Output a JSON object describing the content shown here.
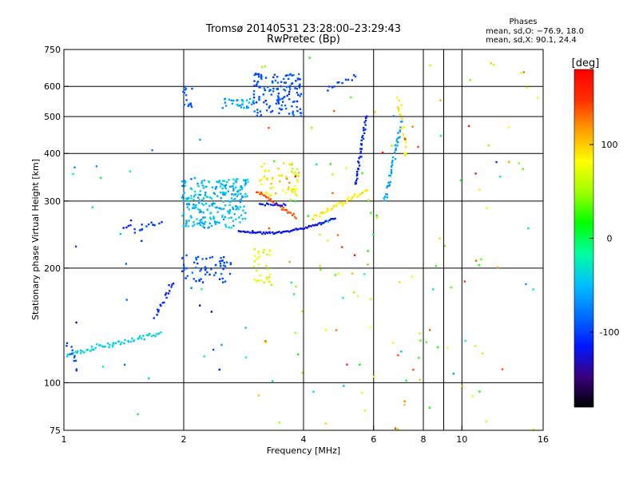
{
  "chart_data": {
    "type": "scatter",
    "title": "Tromsø 20140531 23:28:00–23:29:43",
    "subtitle": "RwPretec (Bp)",
    "stats": {
      "heading": "Phases",
      "line_o": "mean, sd,O: −76.9, 18.0",
      "line_x": "mean, sd,X:  90.1, 24.4"
    },
    "xlabel": "Frequency [MHz]",
    "ylabel": "Stationary phase Virtual Height [km]",
    "x_scale": "log",
    "y_scale": "log",
    "xlim": [
      1,
      16
    ],
    "ylim": [
      75,
      750
    ],
    "x_ticks": [
      {
        "value": 1,
        "label": "1"
      },
      {
        "value": 2,
        "label": "2"
      },
      {
        "value": 4,
        "label": "4"
      },
      {
        "value": 6,
        "label": "6"
      },
      {
        "value": 8,
        "label": "8"
      },
      {
        "value": 10,
        "label": "10"
      },
      {
        "value": 16,
        "label": "16"
      }
    ],
    "x_gridlines": [
      2,
      4,
      6,
      8,
      10
    ],
    "x_extra_ticks": [
      9
    ],
    "y_ticks": [
      {
        "value": 75,
        "label": "75"
      },
      {
        "value": 100,
        "label": "100"
      },
      {
        "value": 200,
        "label": "200"
      },
      {
        "value": 300,
        "label": "300"
      },
      {
        "value": 400,
        "label": "400"
      },
      {
        "value": 500,
        "label": "500"
      },
      {
        "value": 600,
        "label": "600"
      },
      {
        "value": 750,
        "label": "750"
      }
    ],
    "y_gridlines": [
      100,
      200,
      300,
      400,
      500,
      600
    ],
    "grid": true,
    "colorbar": {
      "unit": "[deg]",
      "range": [
        -180,
        180
      ],
      "ticks": [
        {
          "value": 100,
          "label": "100"
        },
        {
          "value": 0,
          "label": "0"
        },
        {
          "value": -100,
          "label": "-100"
        }
      ],
      "stops": [
        "#000000",
        "#3a0080",
        "#0018ff",
        "#0070ff",
        "#00c0ff",
        "#00ffa0",
        "#00ff00",
        "#a0ff00",
        "#ffff00",
        "#ffa000",
        "#ff3000",
        "#ff0000"
      ]
    },
    "series": [
      {
        "type": "curve",
        "x0": 1.02,
        "x1": 1.75,
        "y0": 118,
        "y1": 135,
        "phase": -40,
        "n": 60,
        "jitter": 0.012
      },
      {
        "type": "curve",
        "x0": 1.02,
        "x1": 1.08,
        "y0": 128,
        "y1": 110,
        "phase": -95,
        "n": 12,
        "jitter": 0.02
      },
      {
        "type": "curve",
        "x0": 1.7,
        "x1": 1.88,
        "y0": 150,
        "y1": 182,
        "phase": -110,
        "n": 18,
        "jitter": 0.015
      },
      {
        "type": "curve",
        "x0": 1.5,
        "x1": 1.75,
        "y0": 250,
        "y1": 265,
        "phase": -100,
        "n": 14,
        "jitter": 0.02
      },
      {
        "type": "curve",
        "x0": 1.42,
        "x1": 1.48,
        "y0": 255,
        "y1": 262,
        "phase": -110,
        "n": 5,
        "jitter": 0.01
      },
      {
        "type": "cluster",
        "x0": 1.98,
        "x1": 2.9,
        "y0": 255,
        "y1": 345,
        "phase": -50,
        "phase_sd": 18,
        "n": 260
      },
      {
        "type": "cluster",
        "x0": 1.98,
        "x1": 2.65,
        "y0": 183,
        "y1": 215,
        "phase": -95,
        "phase_sd": 12,
        "n": 60
      },
      {
        "type": "cluster",
        "x0": 1.98,
        "x1": 2.1,
        "y0": 530,
        "y1": 600,
        "phase": -90,
        "phase_sd": 8,
        "n": 14
      },
      {
        "type": "cluster",
        "x0": 2.5,
        "x1": 3.0,
        "y0": 525,
        "y1": 560,
        "phase": -60,
        "phase_sd": 15,
        "n": 30
      },
      {
        "type": "cluster",
        "x0": 3.0,
        "x1": 3.95,
        "y0": 500,
        "y1": 650,
        "phase": -95,
        "phase_sd": 15,
        "n": 140
      },
      {
        "type": "cluster",
        "x0": 3.1,
        "x1": 3.9,
        "y0": 310,
        "y1": 380,
        "phase": 85,
        "phase_sd": 22,
        "n": 60
      },
      {
        "type": "cluster",
        "x0": 3.0,
        "x1": 3.3,
        "y0": 180,
        "y1": 225,
        "phase": 75,
        "phase_sd": 15,
        "n": 30
      },
      {
        "type": "curve",
        "x0": 3.05,
        "x1": 3.85,
        "y0": 318,
        "y1": 272,
        "phase": 140,
        "n": 30,
        "jitter": 0.008
      },
      {
        "type": "curve",
        "x0": 3.1,
        "x1": 3.6,
        "y0": 294,
        "y1": 293,
        "phase": -115,
        "n": 15,
        "jitter": 0.005
      },
      {
        "type": "curve",
        "x0": 2.75,
        "x1": 4.8,
        "y0": 250,
        "y1": 270,
        "phase": -120,
        "n": 70,
        "jitter": 0.005,
        "bow": -0.04
      },
      {
        "type": "curve",
        "x0": 4.2,
        "x1": 5.8,
        "y0": 270,
        "y1": 320,
        "phase": 90,
        "n": 40,
        "jitter": 0.01
      },
      {
        "type": "curve",
        "x0": 5.4,
        "x1": 5.75,
        "y0": 330,
        "y1": 500,
        "phase": -110,
        "n": 40,
        "jitter": 0.01
      },
      {
        "type": "curve",
        "x0": 6.4,
        "x1": 7.05,
        "y0": 300,
        "y1": 480,
        "phase": -60,
        "n": 40,
        "jitter": 0.015
      },
      {
        "type": "curve",
        "x0": 6.9,
        "x1": 7.3,
        "y0": 560,
        "y1": 400,
        "phase": 90,
        "n": 20,
        "jitter": 0.02
      },
      {
        "type": "curve",
        "x0": 4.6,
        "x1": 5.4,
        "y0": 590,
        "y1": 640,
        "phase": -100,
        "n": 12,
        "jitter": 0.01
      },
      {
        "type": "noise",
        "x0": 3.0,
        "x1": 15.5,
        "y0": 75,
        "y1": 720,
        "phase": 60,
        "phase_sd": 90,
        "n": 140
      },
      {
        "type": "noise",
        "x0": 1.0,
        "x1": 3.0,
        "y0": 75,
        "y1": 450,
        "phase": -80,
        "phase_sd": 60,
        "n": 30
      }
    ]
  }
}
